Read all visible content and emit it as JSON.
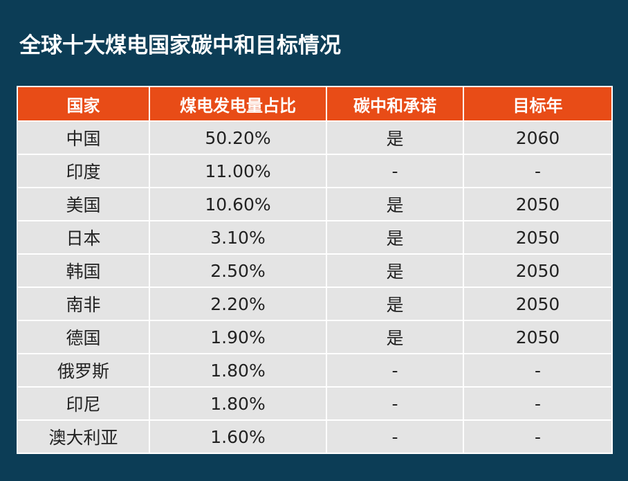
{
  "title": "全球十大煤电国家碳中和目标情况",
  "colors": {
    "background": "#0c3d56",
    "header": "#e84c17",
    "cell": "#e4e4e4"
  },
  "chart_data": {
    "type": "table",
    "title": "全球十大煤电国家碳中和目标情况",
    "columns": [
      "国家",
      "煤电发电量占比",
      "碳中和承诺",
      "目标年"
    ],
    "rows": [
      [
        "中国",
        "50.20%",
        "是",
        "2060"
      ],
      [
        "印度",
        "11.00%",
        "-",
        "-"
      ],
      [
        "美国",
        "10.60%",
        "是",
        "2050"
      ],
      [
        "日本",
        "3.10%",
        "是",
        "2050"
      ],
      [
        "韩国",
        "2.50%",
        "是",
        "2050"
      ],
      [
        "南非",
        "2.20%",
        "是",
        "2050"
      ],
      [
        "德国",
        "1.90%",
        "是",
        "2050"
      ],
      [
        "俄罗斯",
        "1.80%",
        "-",
        "-"
      ],
      [
        "印尼",
        "1.80%",
        "-",
        "-"
      ],
      [
        "澳大利亚",
        "1.60%",
        "-",
        "-"
      ]
    ]
  }
}
